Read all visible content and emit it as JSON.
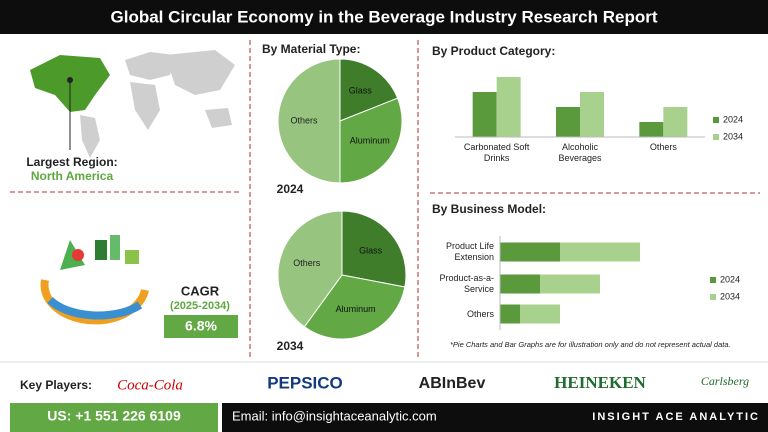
{
  "header": {
    "title": "Global Circular Economy in the Beverage Industry Research Report"
  },
  "region": {
    "label": "Largest Region:",
    "value": "North America"
  },
  "cagr": {
    "label": "CAGR",
    "period": "(2025-2034)",
    "value": "6.8%"
  },
  "chart_data": [
    {
      "type": "pie",
      "title": "By Material Type:",
      "label": "2024",
      "categories": [
        "Glass",
        "Aluminum",
        "Others"
      ],
      "values": [
        19,
        31,
        50
      ],
      "colors": [
        "#3f7d2b",
        "#62a844",
        "#97c57f"
      ]
    },
    {
      "type": "pie",
      "label": "2034",
      "categories": [
        "Glass",
        "Aluminum",
        "Others"
      ],
      "values": [
        28,
        32,
        40
      ],
      "colors": [
        "#3f7d2b",
        "#62a844",
        "#97c57f"
      ]
    },
    {
      "type": "bar",
      "title": "By Product Category:",
      "categories": [
        "Carbonated Soft Drinks",
        "Alcoholic Beverages",
        "Others"
      ],
      "series": [
        {
          "name": "2024",
          "color": "#5a9a3c",
          "values": [
            3,
            2,
            1
          ]
        },
        {
          "name": "2034",
          "color": "#a9d18e",
          "values": [
            4,
            3,
            2
          ]
        }
      ],
      "ylim": [
        0,
        4.8
      ],
      "grid": false,
      "legend": "right"
    },
    {
      "type": "bar",
      "horizontal": true,
      "stacked": true,
      "title": "By Business Model:",
      "categories": [
        "Product Life Extension",
        "Product-as-a-Service",
        "Others"
      ],
      "series": [
        {
          "name": "2024",
          "color": "#5a9a3c",
          "values": [
            3,
            2,
            1
          ]
        },
        {
          "name": "2034",
          "color": "#a9d18e",
          "values": [
            4,
            3,
            2
          ]
        }
      ],
      "xlim": [
        0,
        10
      ],
      "grid": false,
      "legend": "right"
    }
  ],
  "note": "*Pie Charts and Bar Graphs are for illustration only and do not represent actual data.",
  "key_players": {
    "label": "Key Players:",
    "players": [
      "Coca-Cola",
      "PEPSICO",
      "ABInBev",
      "HEINEKEN",
      "Carlsberg"
    ]
  },
  "footer": {
    "phone": "US: +1 551 226 6109",
    "email": "Email: info@insightaceanalytic.com",
    "brand": "INSIGHT ACE ANALYTIC"
  }
}
